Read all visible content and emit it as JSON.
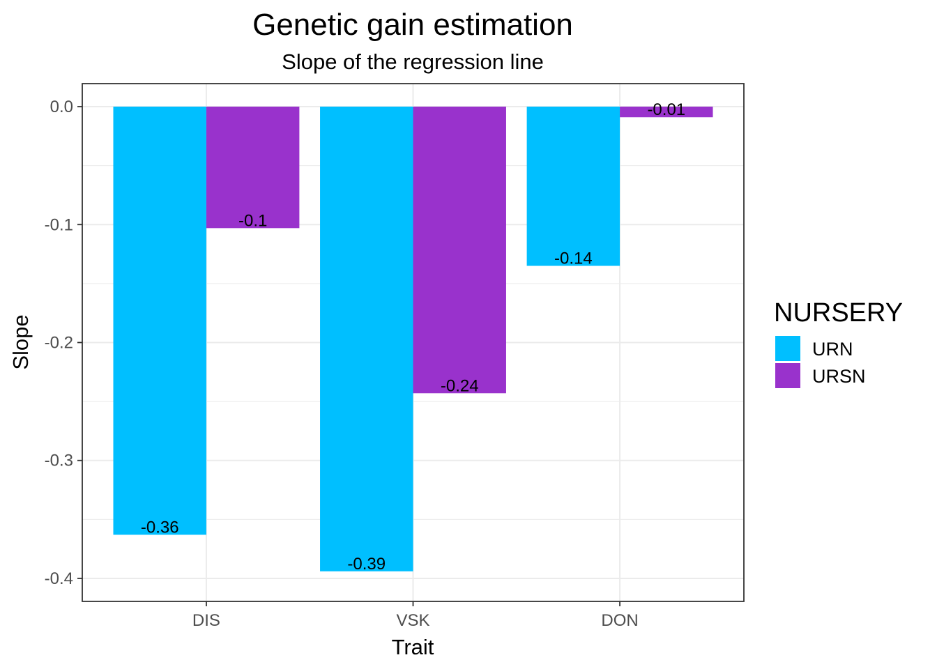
{
  "chart_data": {
    "type": "bar",
    "title": "Genetic gain estimation",
    "subtitle": "Slope of the regression line",
    "xlabel": "Trait",
    "ylabel": "Slope",
    "categories": [
      "DIS",
      "VSK",
      "DON"
    ],
    "series": [
      {
        "name": "URN",
        "color": "#00BFFF",
        "values": [
          -0.363,
          -0.394,
          -0.135
        ],
        "labels": [
          "-0.36",
          "-0.39",
          "-0.14"
        ]
      },
      {
        "name": "URSN",
        "color": "#9932CC",
        "values": [
          -0.103,
          -0.243,
          -0.009
        ],
        "labels": [
          "-0.1",
          "-0.24",
          "-0.01"
        ]
      }
    ],
    "ylim": [
      -0.4195,
      0.0195
    ],
    "yticks": [
      0.0,
      -0.1,
      -0.2,
      -0.3,
      -0.4
    ],
    "ytick_labels": [
      "0.0",
      "-0.1",
      "-0.2",
      "-0.3",
      "-0.4"
    ],
    "legend": {
      "title": "NURSERY",
      "position": "right"
    },
    "grid": true
  }
}
